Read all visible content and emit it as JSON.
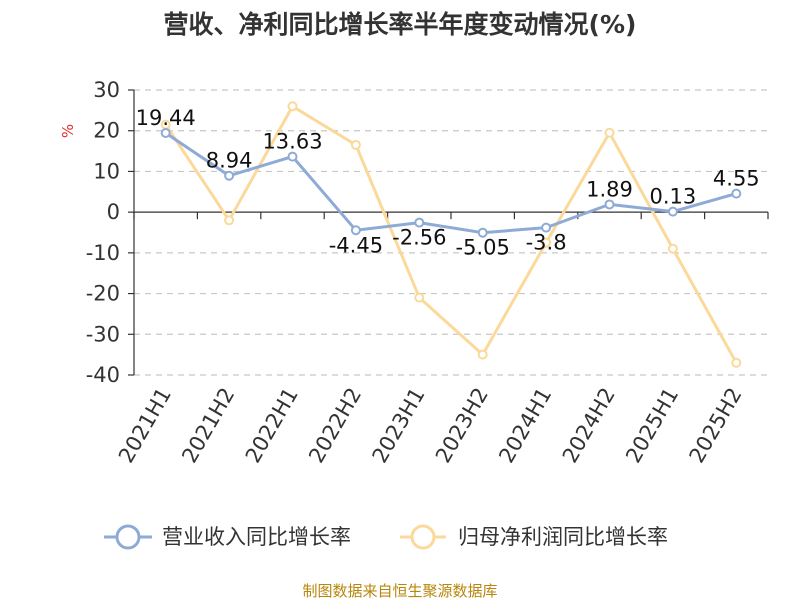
{
  "chart_data": {
    "type": "line",
    "title": "营收、净利同比增长率半年度变动情况(%)",
    "ylabel": "%",
    "xlabel": "",
    "categories": [
      "2021H1",
      "2021H2",
      "2022H1",
      "2022H2",
      "2023H1",
      "2023H2",
      "2024H1",
      "2024H2",
      "2025H1",
      "2025H2"
    ],
    "ylim": [
      -40,
      30
    ],
    "yticks": [
      30,
      20,
      10,
      0,
      -10,
      -20,
      -30,
      -40
    ],
    "grid": true,
    "legend_position": "bottom",
    "series": [
      {
        "name": "营业收入同比增长率",
        "color": "#8eaad6",
        "values": [
          19.44,
          8.94,
          13.63,
          -4.45,
          -2.56,
          -5.05,
          -3.8,
          1.89,
          0.13,
          4.55
        ],
        "labels": [
          "19.44",
          "8.94",
          "13.63",
          "-4.45",
          "-2.56",
          "-5.05",
          "-3.8",
          "1.89",
          "0.13",
          "4.55"
        ]
      },
      {
        "name": "归母净利润同比增长率",
        "color": "#fbd99b",
        "values": [
          21.5,
          -2.0,
          26.0,
          16.5,
          -21.0,
          -35.0,
          -7.5,
          19.5,
          -9.0,
          -37.0
        ]
      }
    ],
    "source": "制图数据来自恒生聚源数据库"
  }
}
